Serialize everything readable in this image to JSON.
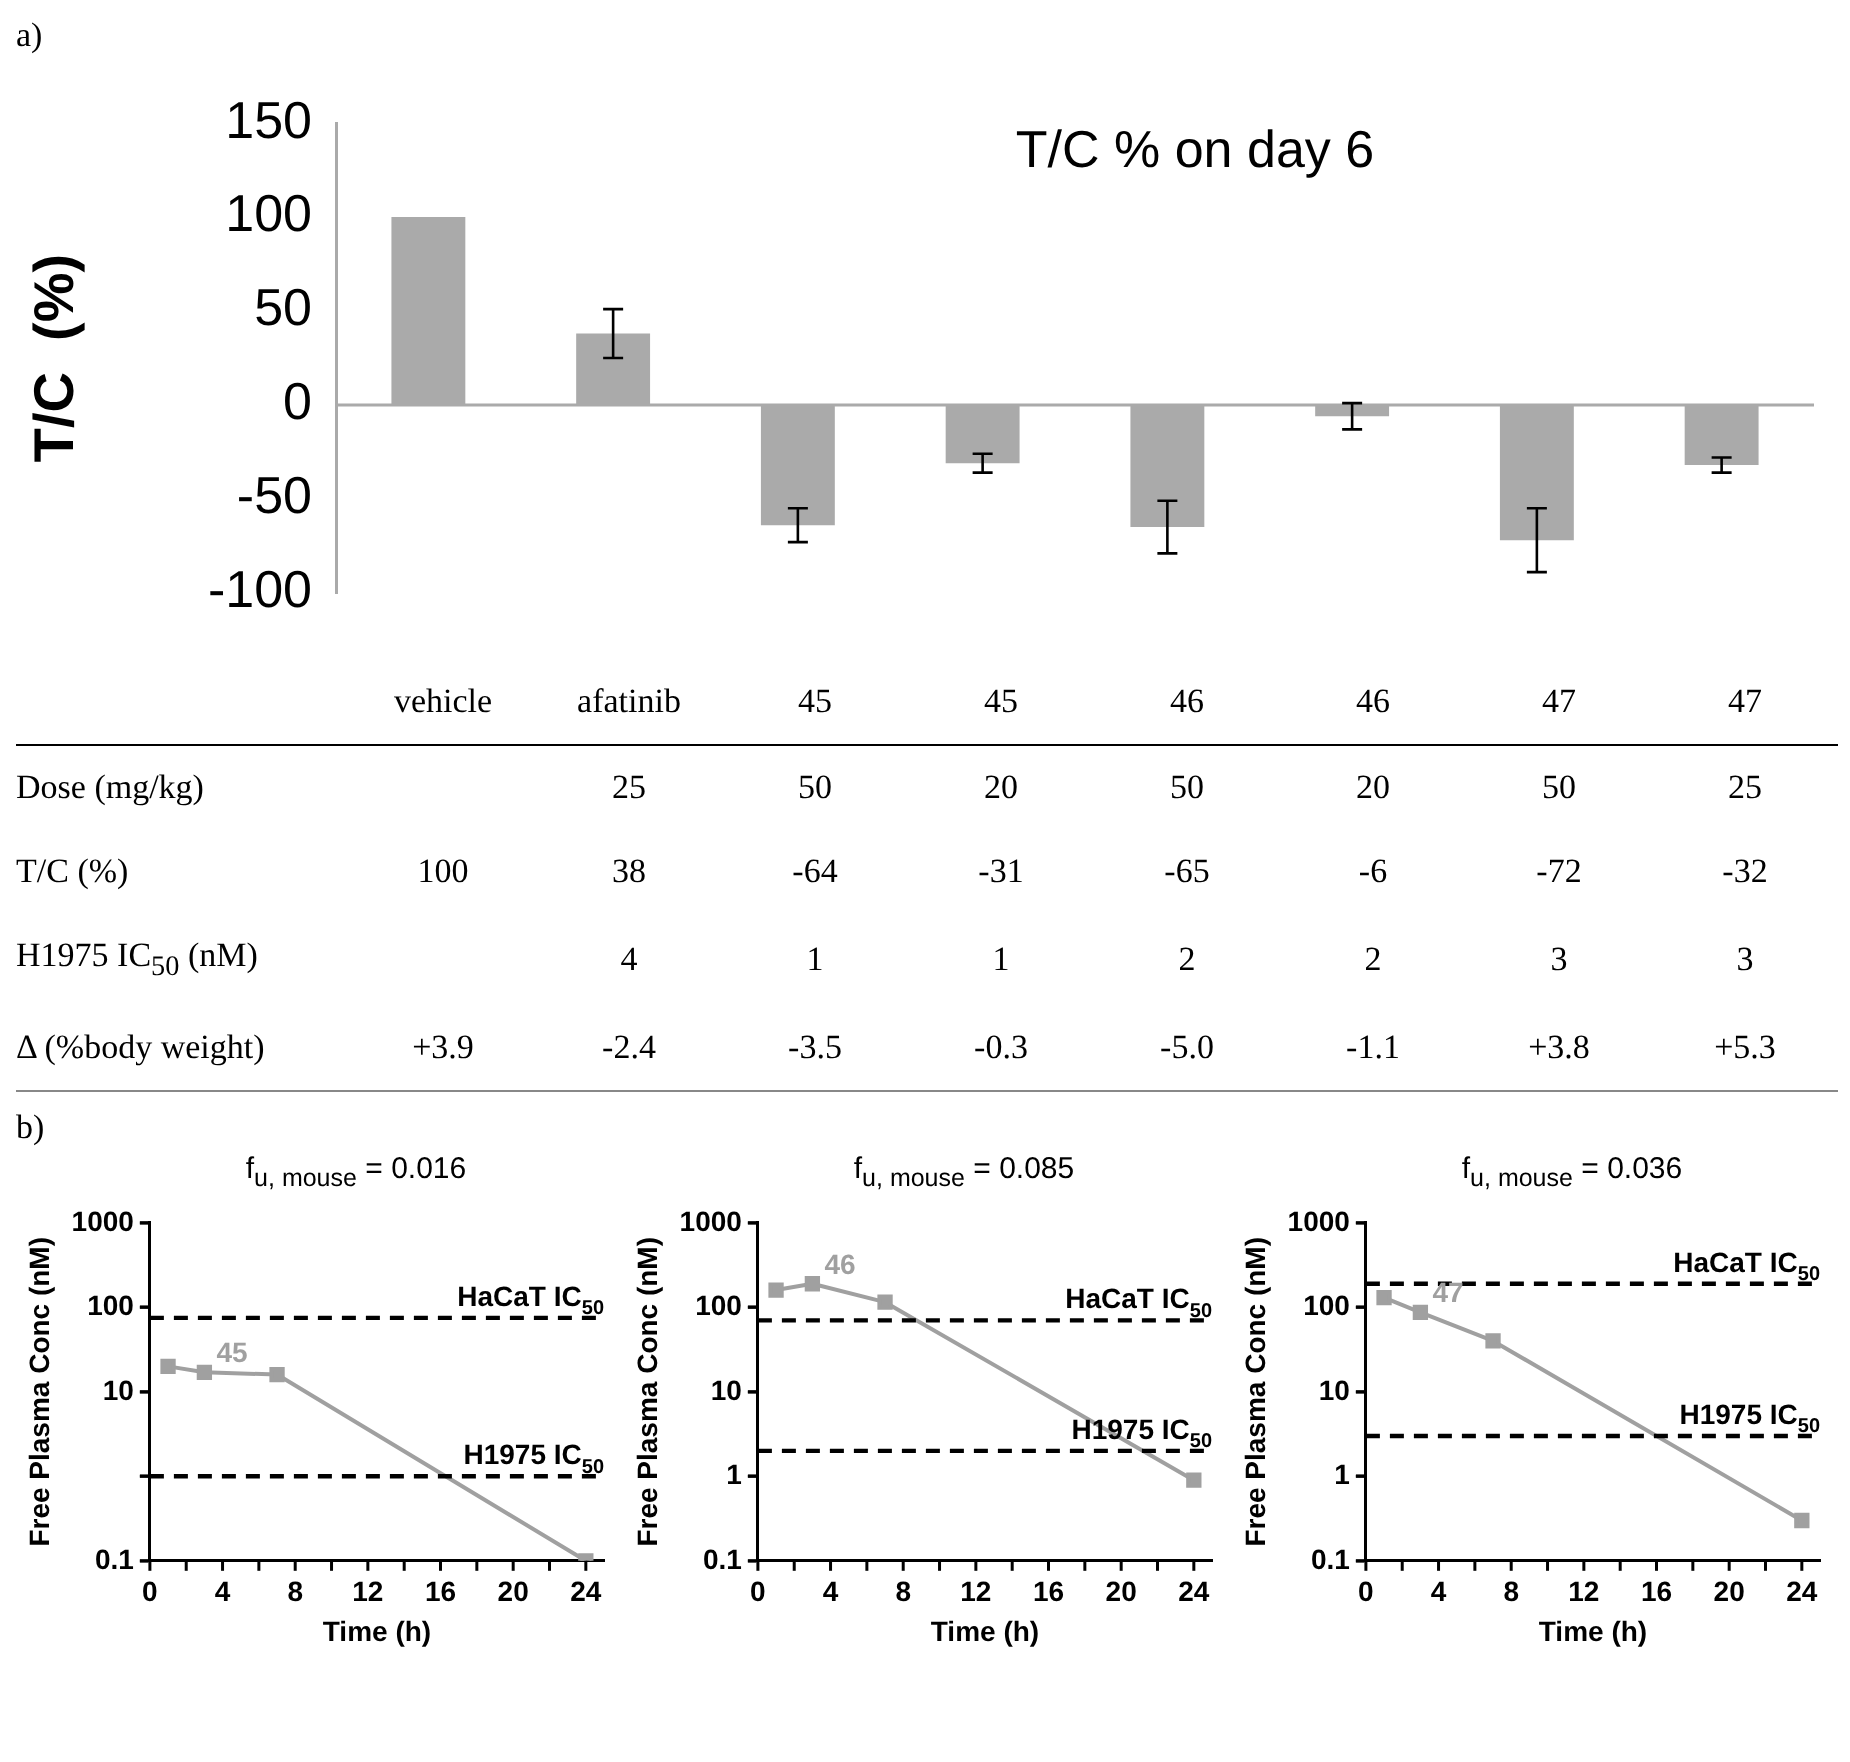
{
  "chart_data": [
    {
      "type": "bar",
      "title": "T/C % on day 6",
      "ylabel": "T/C  (%)",
      "annotations": [
        "a)"
      ],
      "categories": [
        null,
        null,
        null,
        null,
        null,
        null,
        null,
        null
      ],
      "values": [
        100,
        38,
        -64,
        -31,
        -65,
        -6,
        -72,
        -32
      ],
      "errors": [
        null,
        13,
        9,
        5,
        14,
        7,
        17,
        4
      ],
      "color": "#aaaaaa",
      "ref_lines": [
        {
          "axis": "y",
          "value": 0,
          "color": "#aaaaaa",
          "line_style": "solid"
        }
      ],
      "ylim": [
        -100,
        150
      ],
      "yticks": [
        -100,
        -50,
        0,
        50,
        100,
        150
      ],
      "tick_labels": "y",
      "grid": false,
      "legend": false
    },
    {
      "type": "other",
      "categories": [
        "vehicle",
        "afatinib",
        "45",
        "45",
        "46",
        "46",
        "47",
        "47"
      ],
      "y_categories": [
        "Dose (mg/kg)",
        "T/C (%)",
        "H1975 IC$_{50}$ (nM)",
        "Δ (%body weight)"
      ],
      "cell_labels": [
        [
          null,
          "25",
          "50",
          "20",
          "50",
          "20",
          "50",
          "25"
        ],
        [
          "100",
          "38",
          "-64",
          "-31",
          "-65",
          "-6",
          "-72",
          "-32"
        ],
        [
          null,
          "4",
          "1",
          "1",
          "2",
          "2",
          "3",
          "3"
        ],
        [
          "+3.9",
          "-2.4",
          "-3.5",
          "-0.3",
          "-5.0",
          "-1.1",
          "+3.8",
          "+5.3"
        ]
      ]
    },
    {
      "type": "line",
      "title": "f$_{u, mouse}$ = 0.016",
      "xlabel": "Time (h)",
      "ylabel": "Free Plasma Conc (nM)",
      "annotations": [
        "b)"
      ],
      "x": [
        1,
        3,
        7,
        24
      ],
      "series": [
        {
          "name": "45",
          "color": "#a0a0a0",
          "values": [
            20,
            17,
            16,
            0.1
          ]
        }
      ],
      "log": "y",
      "xlim": [
        0,
        25
      ],
      "xticks": [
        0,
        {
          "value": 2,
          "label": null
        },
        4,
        {
          "value": 6,
          "label": null
        },
        8,
        {
          "value": 10,
          "label": null
        },
        12,
        {
          "value": 14,
          "label": null
        },
        16,
        {
          "value": 18,
          "label": null
        },
        20,
        {
          "value": 22,
          "label": null
        },
        24
      ],
      "ylim": [
        0.1,
        1000
      ],
      "yticks": [
        0.1,
        {
          "value": 1,
          "label": null
        },
        10,
        100,
        1000
      ],
      "ref_lines": [
        {
          "axis": "y",
          "value": 75,
          "label": "HaCaT IC$_{50}$",
          "color": "#000000",
          "line_style": "dashed"
        },
        {
          "axis": "y",
          "value": 1,
          "label": "H1975 IC$_{50}$",
          "color": "#000000",
          "line_style": "dashed"
        }
      ],
      "marker": "square",
      "grid": false,
      "legend": false
    },
    {
      "type": "line",
      "title": "f$_{u, mouse}$ = 0.085",
      "xlabel": "Time (h)",
      "ylabel": "Free Plasma Conc (nM)",
      "x": [
        1,
        3,
        7,
        24
      ],
      "series": [
        {
          "name": "46",
          "color": "#a0a0a0",
          "values": [
            160,
            190,
            115,
            0.9
          ]
        }
      ],
      "log": "y",
      "xlim": [
        0,
        25
      ],
      "xticks": [
        0,
        {
          "value": 2,
          "label": null
        },
        4,
        {
          "value": 6,
          "label": null
        },
        8,
        {
          "value": 10,
          "label": null
        },
        12,
        {
          "value": 14,
          "label": null
        },
        16,
        {
          "value": 18,
          "label": null
        },
        20,
        {
          "value": 22,
          "label": null
        },
        24
      ],
      "ylim": [
        0.1,
        1000
      ],
      "yticks": [
        0.1,
        1,
        10,
        100,
        1000
      ],
      "ref_lines": [
        {
          "axis": "y",
          "value": 70,
          "label": "HaCaT IC$_{50}$",
          "color": "#000000",
          "line_style": "dashed"
        },
        {
          "axis": "y",
          "value": 2,
          "label": "H1975 IC$_{50}$",
          "color": "#000000",
          "line_style": "dashed"
        }
      ],
      "marker": "square",
      "grid": false,
      "legend": false
    },
    {
      "type": "line",
      "title": "f$_{u, mouse}$ = 0.036",
      "xlabel": "Time (h)",
      "ylabel": "Free Plasma Conc (nM)",
      "x": [
        1,
        3,
        7,
        24
      ],
      "series": [
        {
          "name": "47",
          "color": "#a0a0a0",
          "values": [
            130,
            87,
            40,
            0.3
          ]
        }
      ],
      "log": "y",
      "xlim": [
        0,
        25
      ],
      "xticks": [
        0,
        {
          "value": 2,
          "label": null
        },
        4,
        {
          "value": 6,
          "label": null
        },
        8,
        {
          "value": 10,
          "label": null
        },
        12,
        {
          "value": 14,
          "label": null
        },
        16,
        {
          "value": 18,
          "label": null
        },
        20,
        {
          "value": 22,
          "label": null
        },
        24
      ],
      "ylim": [
        0.1,
        1000
      ],
      "yticks": [
        0.1,
        1,
        10,
        100,
        1000
      ],
      "ref_lines": [
        {
          "axis": "y",
          "value": 190,
          "label": "HaCaT IC$_{50}$",
          "color": "#000000",
          "line_style": "dashed"
        },
        {
          "axis": "y",
          "value": 3,
          "label": "H1975 IC$_{50}$",
          "color": "#000000",
          "line_style": "dashed"
        }
      ],
      "marker": "square",
      "grid": false,
      "legend": false
    }
  ]
}
